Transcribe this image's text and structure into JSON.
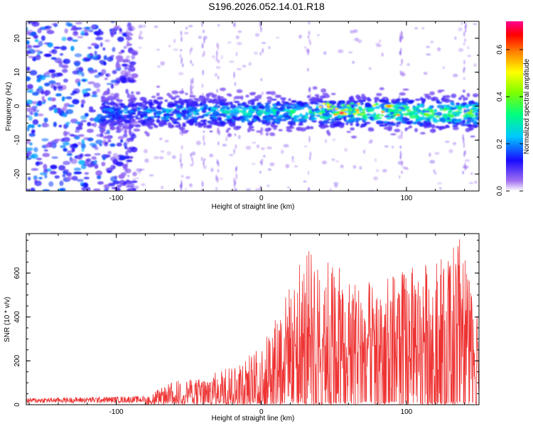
{
  "title": "S196.2026.052.14.01.R18",
  "chart_data": [
    {
      "type": "heatmap",
      "name": "spectrogram",
      "xlabel": "Height of straight line (km)",
      "ylabel": "Frequency (Hz)",
      "xlim": [
        -162,
        150
      ],
      "ylim": [
        -25,
        25
      ],
      "xticks": [
        -100,
        0,
        100
      ],
      "yticks": [
        -20,
        -10,
        0,
        10,
        20
      ],
      "colorbar": {
        "label": "Normalized spectral amplitude",
        "range": [
          0.0,
          0.72
        ],
        "ticks": [
          0.0,
          0.2,
          0.4,
          0.6
        ],
        "tick_labels": [
          "0.0",
          "0.2",
          "0.4",
          "0.6"
        ]
      },
      "features": [
        {
          "description": "band near 0 Hz",
          "x_range": [
            -110,
            150
          ],
          "freq_center": -2,
          "freq_halfwidth": 5
        },
        {
          "description": "peak max",
          "x": 55,
          "freq": -2,
          "value": 0.7
        },
        {
          "description": "peak",
          "x": 88,
          "freq": 0,
          "value": 0.6
        }
      ]
    },
    {
      "type": "line",
      "name": "snr",
      "xlabel": "Height of straight line (km)",
      "ylabel": "SNR (10 * v/v)",
      "xlim": [
        -162,
        150
      ],
      "ylim": [
        0,
        780
      ],
      "xticks": [
        -100,
        0,
        100
      ],
      "yticks": [
        0,
        200,
        400,
        600
      ],
      "color": "#ee3333",
      "envelope": [
        {
          "x": -162,
          "y": 25
        },
        {
          "x": -80,
          "y": 35
        },
        {
          "x": -60,
          "y": 110
        },
        {
          "x": -40,
          "y": 120
        },
        {
          "x": -20,
          "y": 190
        },
        {
          "x": 0,
          "y": 260
        },
        {
          "x": 15,
          "y": 480
        },
        {
          "x": 30,
          "y": 700
        },
        {
          "x": 40,
          "y": 720
        },
        {
          "x": 60,
          "y": 580
        },
        {
          "x": 80,
          "y": 560
        },
        {
          "x": 100,
          "y": 620
        },
        {
          "x": 110,
          "y": 640
        },
        {
          "x": 130,
          "y": 700
        },
        {
          "x": 137,
          "y": 780
        },
        {
          "x": 150,
          "y": 360
        }
      ]
    }
  ]
}
